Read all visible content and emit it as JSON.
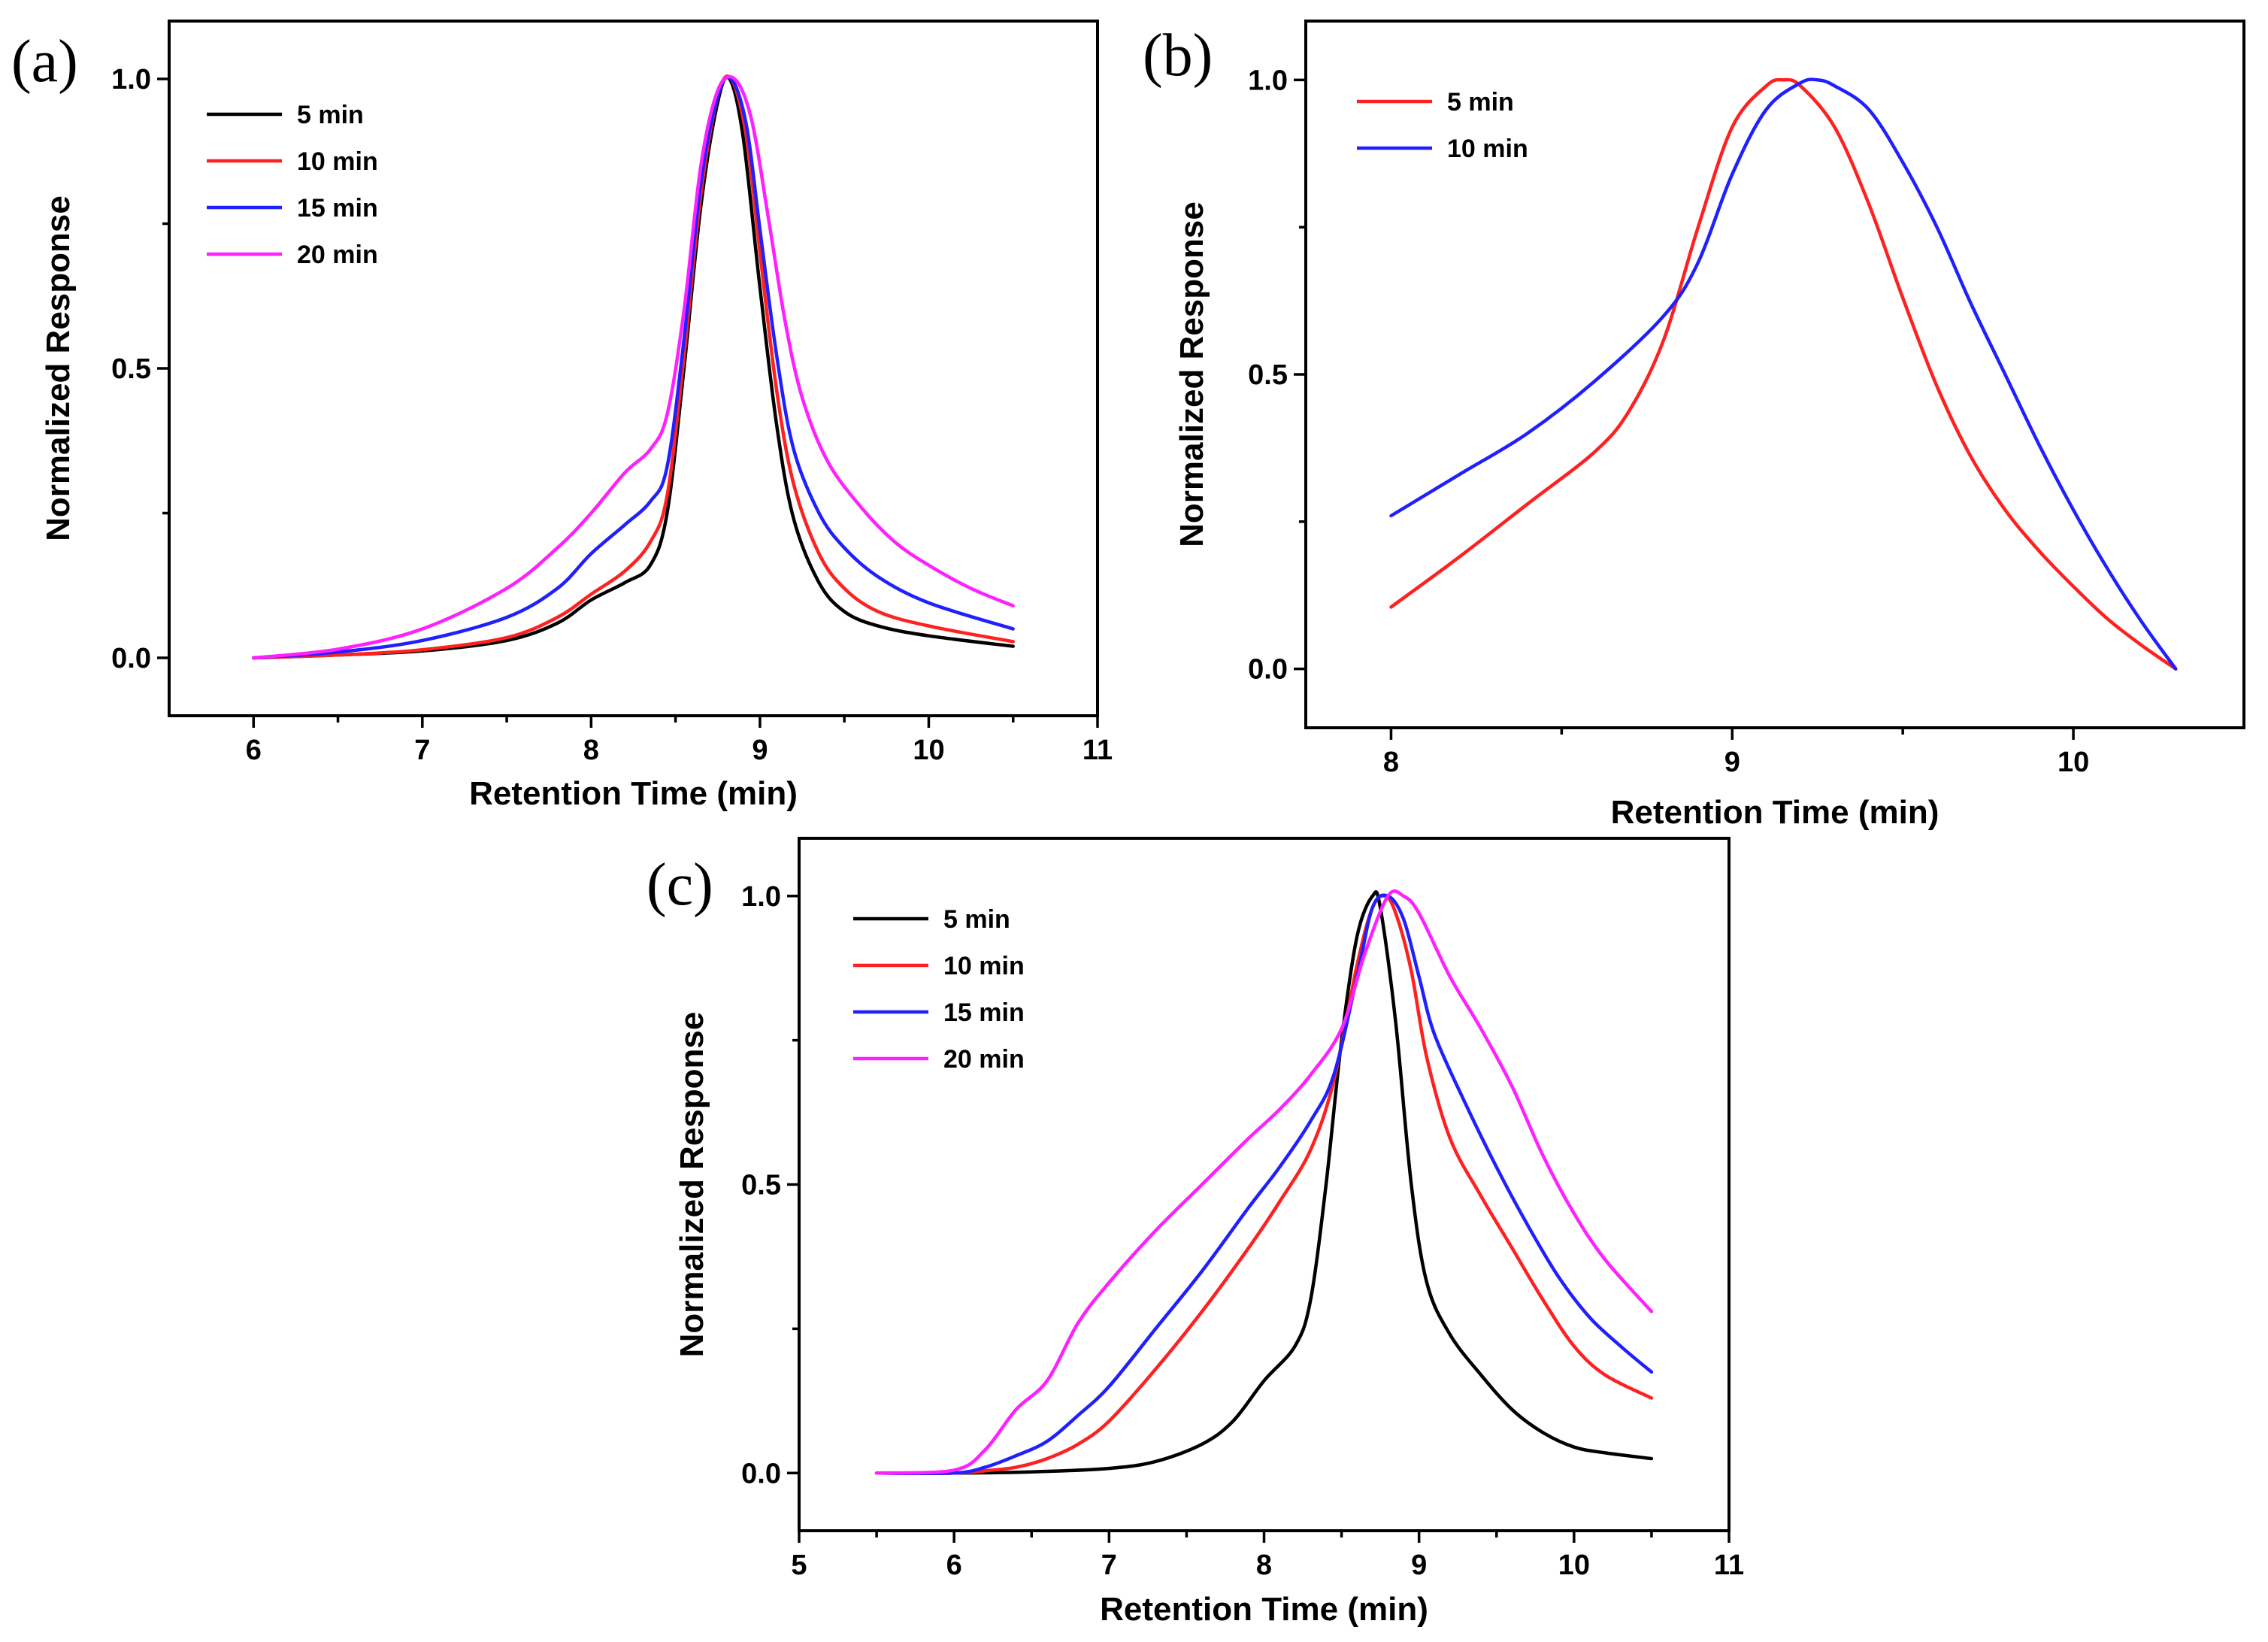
{
  "chart_data": [
    {
      "panel_label": "(a)",
      "type": "line",
      "xlabel": "Retention Time (min)",
      "ylabel": "Normalized Response",
      "xlim": [
        5.5,
        11
      ],
      "ylim": [
        -0.1,
        1.1
      ],
      "xticks": [
        6,
        7,
        8,
        9,
        10,
        11
      ],
      "yticks": [
        0.0,
        0.5,
        1.0
      ],
      "xtick_labels": [
        "6",
        "7",
        "8",
        "9",
        "10",
        "11"
      ],
      "ytick_labels": [
        "0.0",
        "0.5",
        "1.0"
      ],
      "legend_position": "top-left",
      "series": [
        {
          "name": "5 min",
          "color": "#000000",
          "x": [
            6,
            6.5,
            7,
            7.5,
            7.8,
            8.0,
            8.2,
            8.35,
            8.45,
            8.55,
            8.65,
            8.75,
            8.82,
            8.9,
            9.0,
            9.1,
            9.2,
            9.35,
            9.5,
            9.7,
            10.0,
            10.5
          ],
          "y": [
            0,
            0.005,
            0.012,
            0.03,
            0.06,
            0.1,
            0.13,
            0.16,
            0.25,
            0.5,
            0.78,
            0.96,
            1.0,
            0.9,
            0.64,
            0.4,
            0.24,
            0.13,
            0.08,
            0.055,
            0.038,
            0.02
          ]
        },
        {
          "name": "10 min",
          "color": "#ff2020",
          "x": [
            6,
            6.5,
            7,
            7.5,
            7.8,
            8.0,
            8.2,
            8.35,
            8.45,
            8.55,
            8.65,
            8.75,
            8.83,
            8.92,
            9.0,
            9.1,
            9.2,
            9.35,
            9.5,
            9.7,
            10.0,
            10.5
          ],
          "y": [
            0,
            0.005,
            0.014,
            0.035,
            0.07,
            0.11,
            0.15,
            0.2,
            0.28,
            0.52,
            0.8,
            0.97,
            1.0,
            0.9,
            0.7,
            0.46,
            0.3,
            0.18,
            0.12,
            0.08,
            0.055,
            0.028
          ]
        },
        {
          "name": "15 min",
          "color": "#2020ff",
          "x": [
            6,
            6.5,
            7,
            7.5,
            7.8,
            8.0,
            8.2,
            8.35,
            8.45,
            8.55,
            8.65,
            8.75,
            8.83,
            8.92,
            9.0,
            9.1,
            9.2,
            9.35,
            9.5,
            9.7,
            10.0,
            10.5
          ],
          "y": [
            0,
            0.01,
            0.03,
            0.07,
            0.12,
            0.18,
            0.23,
            0.27,
            0.33,
            0.55,
            0.82,
            0.97,
            1.0,
            0.92,
            0.74,
            0.52,
            0.36,
            0.25,
            0.19,
            0.14,
            0.095,
            0.05
          ]
        },
        {
          "name": "20 min",
          "color": "#ff20ff",
          "x": [
            6,
            6.5,
            7,
            7.5,
            7.8,
            8.0,
            8.2,
            8.35,
            8.45,
            8.55,
            8.65,
            8.75,
            8.85,
            8.95,
            9.05,
            9.15,
            9.25,
            9.4,
            9.6,
            9.8,
            10.0,
            10.25,
            10.5
          ],
          "y": [
            0,
            0.015,
            0.05,
            0.12,
            0.19,
            0.25,
            0.32,
            0.36,
            0.42,
            0.6,
            0.85,
            0.98,
            1.0,
            0.93,
            0.76,
            0.58,
            0.45,
            0.34,
            0.26,
            0.2,
            0.16,
            0.12,
            0.09
          ]
        }
      ]
    },
    {
      "panel_label": "(b)",
      "type": "line",
      "xlabel": "Retention Time (min)",
      "ylabel": "Normalized Response",
      "xlim": [
        7.75,
        10.5
      ],
      "ylim": [
        -0.1,
        1.1
      ],
      "xticks": [
        8,
        9,
        10
      ],
      "yticks": [
        0.0,
        0.5,
        1.0
      ],
      "xtick_labels": [
        "8",
        "9",
        "10"
      ],
      "ytick_labels": [
        "0.0",
        "0.5",
        "1.0"
      ],
      "legend_position": "top-left",
      "series": [
        {
          "name": "5 min",
          "color": "#ff2020",
          "x": [
            8.0,
            8.2,
            8.4,
            8.6,
            8.7,
            8.8,
            8.9,
            9.0,
            9.1,
            9.15,
            9.2,
            9.3,
            9.4,
            9.5,
            9.6,
            9.7,
            9.8,
            9.9,
            10.0,
            10.1,
            10.2,
            10.3
          ],
          "y": [
            0.105,
            0.19,
            0.28,
            0.37,
            0.44,
            0.56,
            0.75,
            0.92,
            0.99,
            1.0,
            0.99,
            0.92,
            0.79,
            0.63,
            0.48,
            0.36,
            0.27,
            0.2,
            0.14,
            0.085,
            0.04,
            0.0
          ]
        },
        {
          "name": "10 min",
          "color": "#2020ff",
          "x": [
            8.0,
            8.2,
            8.4,
            8.6,
            8.8,
            8.9,
            9.0,
            9.1,
            9.2,
            9.25,
            9.3,
            9.4,
            9.5,
            9.6,
            9.7,
            9.8,
            9.9,
            10.0,
            10.1,
            10.2,
            10.3
          ],
          "y": [
            0.26,
            0.33,
            0.4,
            0.49,
            0.6,
            0.69,
            0.84,
            0.95,
            0.995,
            1.0,
            0.99,
            0.95,
            0.86,
            0.75,
            0.62,
            0.5,
            0.38,
            0.27,
            0.17,
            0.08,
            0.0
          ]
        }
      ]
    },
    {
      "panel_label": "(c)",
      "type": "line",
      "xlabel": "Retention Time (min)",
      "ylabel": "Normalized Response",
      "xlim": [
        5,
        11
      ],
      "ylim": [
        -0.1,
        1.1
      ],
      "xticks": [
        5,
        6,
        7,
        8,
        9,
        10,
        11
      ],
      "yticks": [
        0.0,
        0.5,
        1.0
      ],
      "xtick_labels": [
        "5",
        "6",
        "7",
        "8",
        "9",
        "10",
        "11"
      ],
      "ytick_labels": [
        "0.0",
        "0.5",
        "1.0"
      ],
      "legend_position": "top-left",
      "series": [
        {
          "name": "5 min",
          "color": "#000000",
          "x": [
            5.5,
            6.0,
            6.5,
            7.0,
            7.3,
            7.6,
            7.8,
            8.0,
            8.2,
            8.3,
            8.4,
            8.5,
            8.6,
            8.7,
            8.75,
            8.85,
            8.95,
            9.05,
            9.2,
            9.4,
            9.6,
            9.8,
            10.0,
            10.2,
            10.5
          ],
          "y": [
            0,
            0.0,
            0.002,
            0.008,
            0.02,
            0.05,
            0.09,
            0.16,
            0.22,
            0.3,
            0.5,
            0.75,
            0.93,
            1.0,
            0.98,
            0.78,
            0.5,
            0.33,
            0.24,
            0.17,
            0.11,
            0.07,
            0.045,
            0.035,
            0.025
          ]
        },
        {
          "name": "10 min",
          "color": "#ff2020",
          "x": [
            5.5,
            6.0,
            6.2,
            6.4,
            6.6,
            6.8,
            7.0,
            7.3,
            7.6,
            7.9,
            8.1,
            8.3,
            8.45,
            8.6,
            8.7,
            8.78,
            8.85,
            8.95,
            9.05,
            9.2,
            9.4,
            9.6,
            9.8,
            10.0,
            10.2,
            10.5
          ],
          "y": [
            0,
            0.0,
            0.004,
            0.01,
            0.025,
            0.05,
            0.09,
            0.18,
            0.28,
            0.39,
            0.47,
            0.56,
            0.68,
            0.88,
            0.98,
            1.0,
            0.97,
            0.87,
            0.72,
            0.58,
            0.48,
            0.39,
            0.3,
            0.22,
            0.17,
            0.13
          ]
        },
        {
          "name": "15 min",
          "color": "#2020ff",
          "x": [
            5.5,
            6.0,
            6.2,
            6.4,
            6.6,
            6.8,
            7.0,
            7.3,
            7.6,
            7.9,
            8.1,
            8.3,
            8.45,
            8.6,
            8.7,
            8.8,
            8.9,
            9.0,
            9.1,
            9.3,
            9.5,
            9.7,
            9.9,
            10.1,
            10.3,
            10.5
          ],
          "y": [
            0,
            0.0,
            0.01,
            0.03,
            0.055,
            0.1,
            0.15,
            0.25,
            0.35,
            0.46,
            0.53,
            0.61,
            0.69,
            0.86,
            0.98,
            1.0,
            0.96,
            0.86,
            0.76,
            0.64,
            0.53,
            0.43,
            0.34,
            0.27,
            0.22,
            0.175
          ]
        },
        {
          "name": "20 min",
          "color": "#ff20ff",
          "x": [
            5.5,
            6.0,
            6.2,
            6.4,
            6.6,
            6.8,
            7.0,
            7.3,
            7.6,
            7.9,
            8.1,
            8.3,
            8.5,
            8.65,
            8.8,
            8.9,
            9.0,
            9.2,
            9.4,
            9.6,
            9.8,
            10.0,
            10.2,
            10.5
          ],
          "y": [
            0,
            0.005,
            0.04,
            0.11,
            0.16,
            0.26,
            0.33,
            0.42,
            0.5,
            0.58,
            0.63,
            0.69,
            0.77,
            0.9,
            1.0,
            1.0,
            0.97,
            0.86,
            0.77,
            0.67,
            0.55,
            0.45,
            0.37,
            0.28
          ]
        }
      ]
    }
  ]
}
